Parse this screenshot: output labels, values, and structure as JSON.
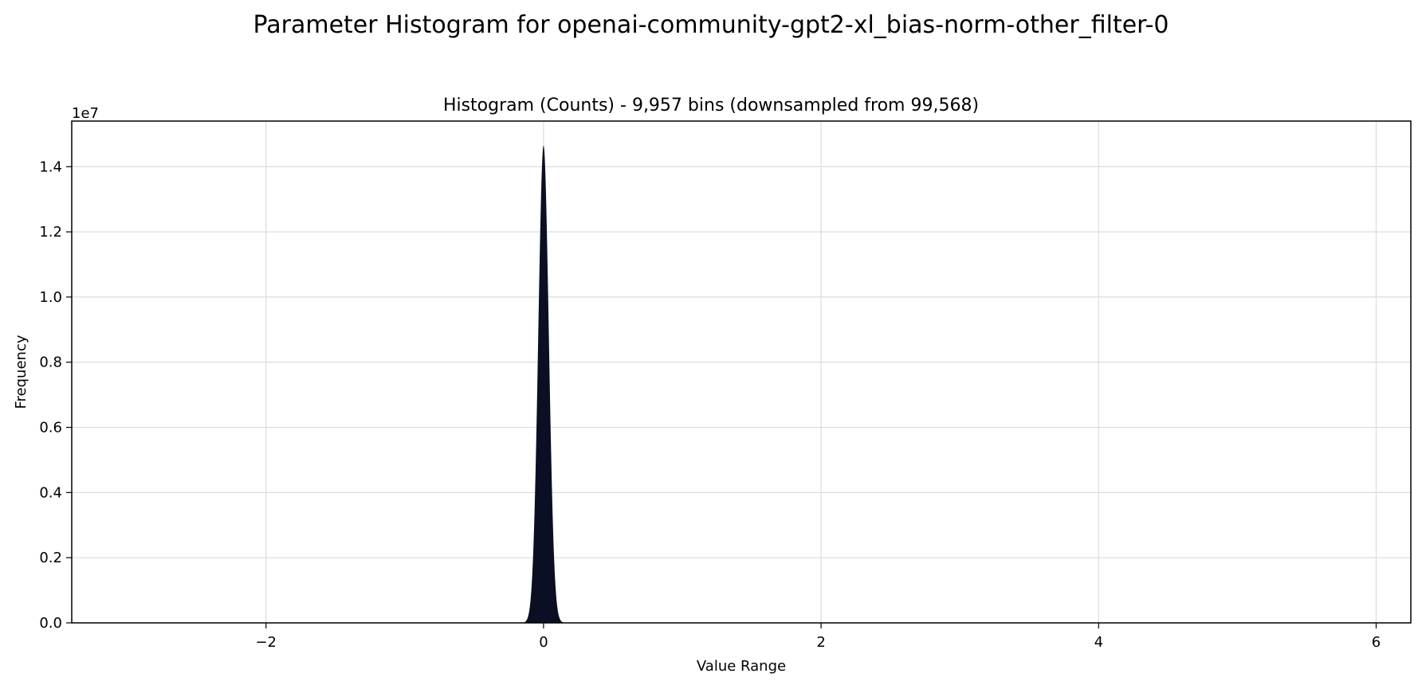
{
  "figure_title": "Parameter Histogram for openai-community-gpt2-xl_bias-norm-other_filter-0",
  "chart_data": {
    "type": "bar",
    "title": "Histogram (Counts) - 9,957 bins (downsampled from 99,568)",
    "xlabel": "Value Range",
    "ylabel": "Frequency",
    "y_offset_label": "1e7",
    "xlim": [
      -3.4,
      6.25
    ],
    "ylim": [
      0,
      15400000
    ],
    "x_ticks": [
      -2,
      0,
      2,
      4,
      6
    ],
    "x_tick_labels": [
      "−2",
      "0",
      "2",
      "4",
      "6"
    ],
    "y_ticks": [
      0,
      2000000,
      4000000,
      6000000,
      8000000,
      10000000,
      12000000,
      14000000
    ],
    "y_tick_labels": [
      "0.0",
      "0.2",
      "0.4",
      "0.6",
      "0.8",
      "1.0",
      "1.2",
      "1.4"
    ],
    "grid": true,
    "bar_color": "#0b0f24",
    "distribution": {
      "shape": "gaussian",
      "center": 0.0,
      "std": 0.038,
      "peak": 14650000,
      "x_min": -0.16,
      "x_max": 0.16
    }
  }
}
